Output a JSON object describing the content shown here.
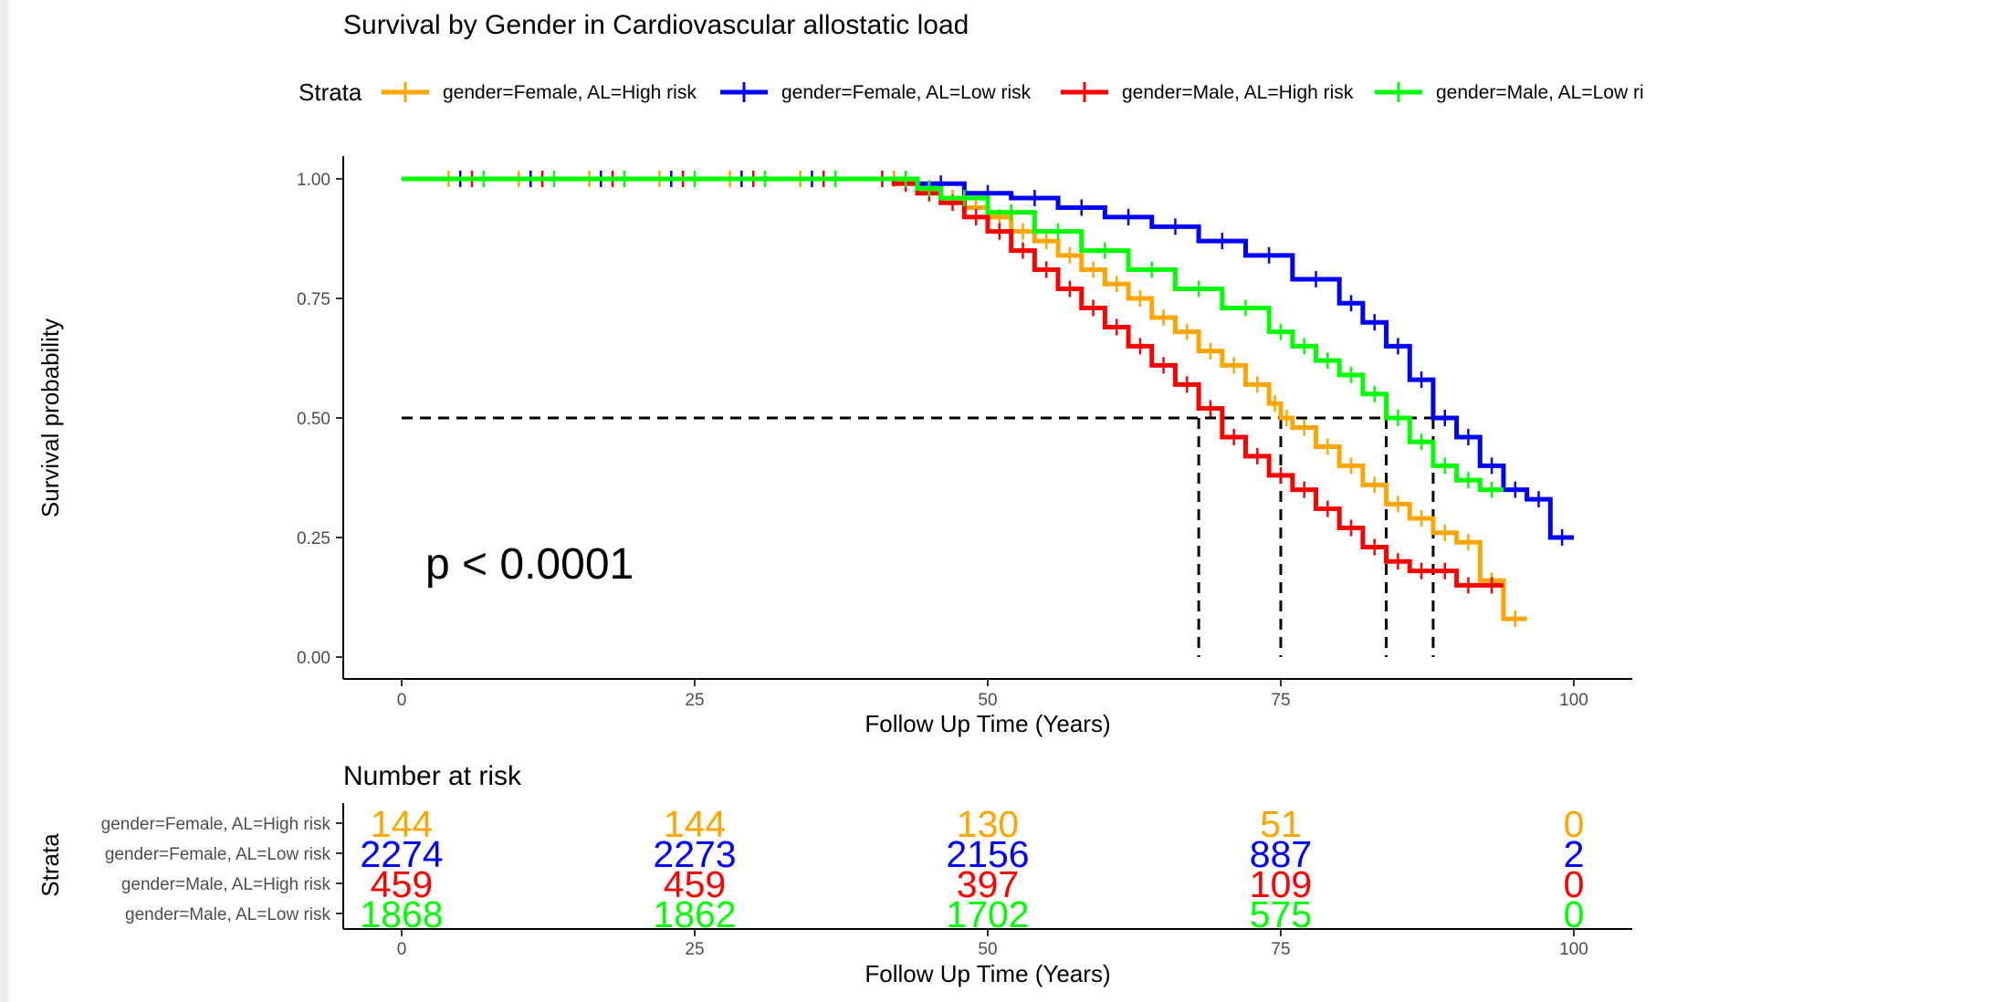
{
  "chart_data": {
    "type": "line",
    "subtype": "kaplan-meier",
    "title": "Survival by Gender in Cardiovascular allostatic load",
    "xlabel": "Follow Up Time (Years)",
    "ylabel": "Survival probability",
    "xlim": [
      0,
      100
    ],
    "ylim": [
      0,
      1
    ],
    "xticks": [
      "0",
      "25",
      "50",
      "75",
      "100"
    ],
    "yticks": [
      "0.00",
      "0.25",
      "0.50",
      "0.75",
      "1.00"
    ],
    "legend_title": "Strata",
    "legend_position": "top",
    "p_value_text": "p < 0.0001",
    "median_line_y": 0.5,
    "medians": [
      68,
      75,
      84,
      88
    ],
    "series": [
      {
        "name": "gender=Female, AL=High risk",
        "color": "#FFA500",
        "x": [
          0,
          40,
          44,
          46,
          48,
          50,
          52,
          54,
          56,
          58,
          60,
          62,
          64,
          66,
          68,
          70,
          72,
          74,
          75,
          76,
          78,
          80,
          82,
          84,
          86,
          88,
          90,
          92,
          94,
          96
        ],
        "y": [
          1.0,
          1.0,
          0.98,
          0.96,
          0.94,
          0.92,
          0.89,
          0.87,
          0.84,
          0.81,
          0.78,
          0.75,
          0.71,
          0.68,
          0.64,
          0.61,
          0.57,
          0.53,
          0.5,
          0.48,
          0.44,
          0.4,
          0.36,
          0.32,
          0.29,
          0.26,
          0.24,
          0.16,
          0.08,
          0.08
        ]
      },
      {
        "name": "gender=Female, AL=Low risk",
        "color": "#0000FF",
        "x": [
          0,
          42,
          44,
          48,
          52,
          56,
          60,
          64,
          68,
          72,
          76,
          80,
          82,
          84,
          86,
          88,
          90,
          92,
          94,
          96,
          98,
          100
        ],
        "y": [
          1.0,
          1.0,
          0.99,
          0.97,
          0.96,
          0.94,
          0.92,
          0.9,
          0.87,
          0.84,
          0.79,
          0.74,
          0.7,
          0.65,
          0.58,
          0.5,
          0.46,
          0.4,
          0.35,
          0.33,
          0.25,
          0.25
        ]
      },
      {
        "name": "gender=Male, AL=High risk",
        "color": "#FF0000",
        "x": [
          0,
          40,
          42,
          44,
          46,
          48,
          50,
          52,
          54,
          56,
          58,
          60,
          62,
          64,
          66,
          68,
          70,
          72,
          74,
          76,
          78,
          80,
          82,
          84,
          86,
          88,
          90,
          92,
          94
        ],
        "y": [
          1.0,
          1.0,
          0.99,
          0.97,
          0.95,
          0.92,
          0.89,
          0.85,
          0.81,
          0.77,
          0.73,
          0.69,
          0.65,
          0.61,
          0.57,
          0.52,
          0.46,
          0.42,
          0.38,
          0.35,
          0.31,
          0.27,
          0.23,
          0.2,
          0.18,
          0.18,
          0.15,
          0.15,
          0.15
        ]
      },
      {
        "name": "gender=Male, AL=Low risk",
        "color": "#00FF00",
        "x": [
          0,
          42,
          44,
          46,
          50,
          54,
          58,
          62,
          66,
          70,
          74,
          76,
          78,
          80,
          82,
          84,
          86,
          88,
          90,
          92,
          94
        ],
        "y": [
          1.0,
          1.0,
          0.98,
          0.96,
          0.93,
          0.89,
          0.85,
          0.81,
          0.77,
          0.73,
          0.68,
          0.65,
          0.62,
          0.59,
          0.55,
          0.5,
          0.45,
          0.4,
          0.37,
          0.35,
          0.35
        ]
      }
    ],
    "risk_table": {
      "title": "Number at risk",
      "ylabel": "Strata",
      "xlabel": "Follow Up Time (Years)",
      "times": [
        0,
        25,
        50,
        75,
        100
      ],
      "rows": [
        {
          "label": "gender=Female, AL=High risk",
          "color": "#FFA500",
          "values": [
            "144",
            "144",
            "130",
            "51",
            "0"
          ]
        },
        {
          "label": "gender=Female, AL=Low risk",
          "color": "#0000FF",
          "values": [
            "2274",
            "2273",
            "2156",
            "887",
            "2"
          ]
        },
        {
          "label": "gender=Male, AL=High risk",
          "color": "#FF0000",
          "values": [
            "459",
            "459",
            "397",
            "109",
            "0"
          ]
        },
        {
          "label": "gender=Male, AL=Low risk",
          "color": "#00FF00",
          "values": [
            "1868",
            "1862",
            "1702",
            "575",
            "0"
          ]
        }
      ]
    }
  }
}
